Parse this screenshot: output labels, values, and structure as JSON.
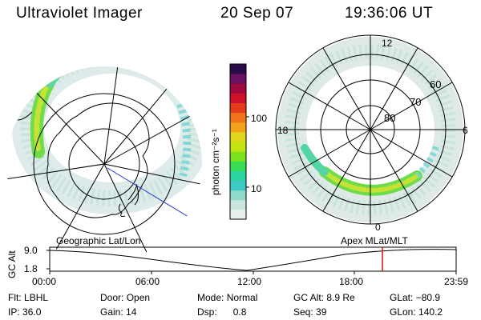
{
  "header": {
    "instrument": "Ultraviolet Imager",
    "date": "20 Sep 07",
    "time": "19:36:06 UT"
  },
  "colorbar": {
    "unit_label": "photon cm⁻²s⁻¹",
    "ticks": [
      {
        "label": "100",
        "value": 100
      },
      {
        "label": "10",
        "value": 10
      }
    ],
    "colors": [
      "#e8f0ee",
      "#c8e6de",
      "#8fd9c9",
      "#3cc9c3",
      "#2ad3a0",
      "#37dd55",
      "#7be11f",
      "#c2e212",
      "#e0d51b",
      "#f2a21a",
      "#f0731c",
      "#e33b1c",
      "#cc1226",
      "#a00a3e",
      "#6c1060",
      "#2a0b4a"
    ]
  },
  "left_map": {
    "label": "Geographic Lat/Lon"
  },
  "right_map": {
    "label": "Apex MLat/MLT",
    "mlt_labels": {
      "top": "12",
      "left": "18",
      "right": "6",
      "bottom": "0"
    },
    "mlat_labels": [
      "80",
      "70",
      "60"
    ]
  },
  "timeline": {
    "ylabel": "GC Alt",
    "y_ticks": [
      "9.0",
      "1.8"
    ],
    "x_ticks": [
      "00:00",
      "06:00",
      "12:00",
      "18:00",
      "23:59"
    ],
    "marker_time": "19:36"
  },
  "status": [
    {
      "label": "Flt:",
      "value": "LBHL"
    },
    {
      "label": "Door:",
      "value": "Open"
    },
    {
      "label": "Mode:",
      "value": "Normal"
    },
    {
      "label": "GC Alt:",
      "value": "8.9 Re"
    },
    {
      "label": "GLat:",
      "value": "−80.9"
    },
    {
      "label": "IP:",
      "value": "36.0"
    },
    {
      "label": "Gain:",
      "value": "14"
    },
    {
      "label": "Dsp:",
      "value": "0.8"
    },
    {
      "label": "Seq:",
      "value": "39"
    },
    {
      "label": "GLon:",
      "value": "140.2"
    }
  ]
}
